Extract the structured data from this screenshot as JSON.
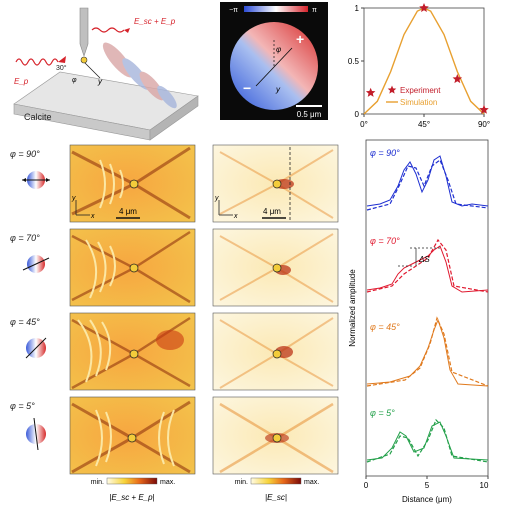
{
  "panel_a": {
    "substrate_label": "Calcite",
    "tip_field_label": "E_sc + E_p",
    "incident_label": "E_p",
    "angle_label": "30°",
    "phi": "φ",
    "y": "y"
  },
  "phase_map": {
    "cmin": "−π",
    "cmax": "π",
    "plus": "+",
    "minus": "−",
    "phi": "φ",
    "y": "y",
    "scale_bar": "0.5 μm"
  },
  "chart_data": {
    "type": "scatter",
    "categories": [
      "0°",
      "45°",
      "90°"
    ],
    "xlim": [
      0,
      90
    ],
    "ylim": [
      0,
      1
    ],
    "yticks": [
      "0",
      "0.5",
      "1"
    ],
    "series": [
      {
        "name": "Experiment",
        "kind": "points",
        "x": [
          5,
          45,
          70,
          90
        ],
        "y": [
          0.2,
          1.0,
          0.33,
          0.04
        ]
      },
      {
        "name": "Simulation",
        "kind": "line",
        "x": [
          0,
          10,
          20,
          30,
          40,
          45,
          50,
          60,
          70,
          80,
          90
        ],
        "y": [
          0.0,
          0.12,
          0.4,
          0.75,
          0.97,
          1.0,
          0.97,
          0.75,
          0.4,
          0.12,
          0.0
        ]
      }
    ],
    "legend": "lower-center"
  },
  "rows": [
    {
      "label": "φ = 90°"
    },
    {
      "label": "φ = 70°"
    },
    {
      "label": "φ = 45°"
    },
    {
      "label": "φ = 5°"
    }
  ],
  "scale_bar_left": "4 μm",
  "scale_bar_mid": "4 μm",
  "axis_x": "x",
  "axis_y": "y",
  "colorbar_left": {
    "min": "min.",
    "max": "max.",
    "label": "|E_sc + E_p|"
  },
  "colorbar_mid": {
    "min": "min.",
    "max": "max.",
    "label": "|E_sc|"
  },
  "profile_chart": {
    "ylabel": "Normalized amplitude",
    "xlabel": "Distance (μm)",
    "xticks": [
      "0",
      "5",
      "10"
    ],
    "delta_label": "ΔS",
    "traces": [
      {
        "label": "φ = 90°",
        "color": "#1e2fd1"
      },
      {
        "label": "φ = 70°",
        "color": "#e0192f"
      },
      {
        "label": "φ = 45°",
        "color": "#e07a1e"
      },
      {
        "label": "φ = 5°",
        "color": "#23a04a"
      }
    ]
  }
}
